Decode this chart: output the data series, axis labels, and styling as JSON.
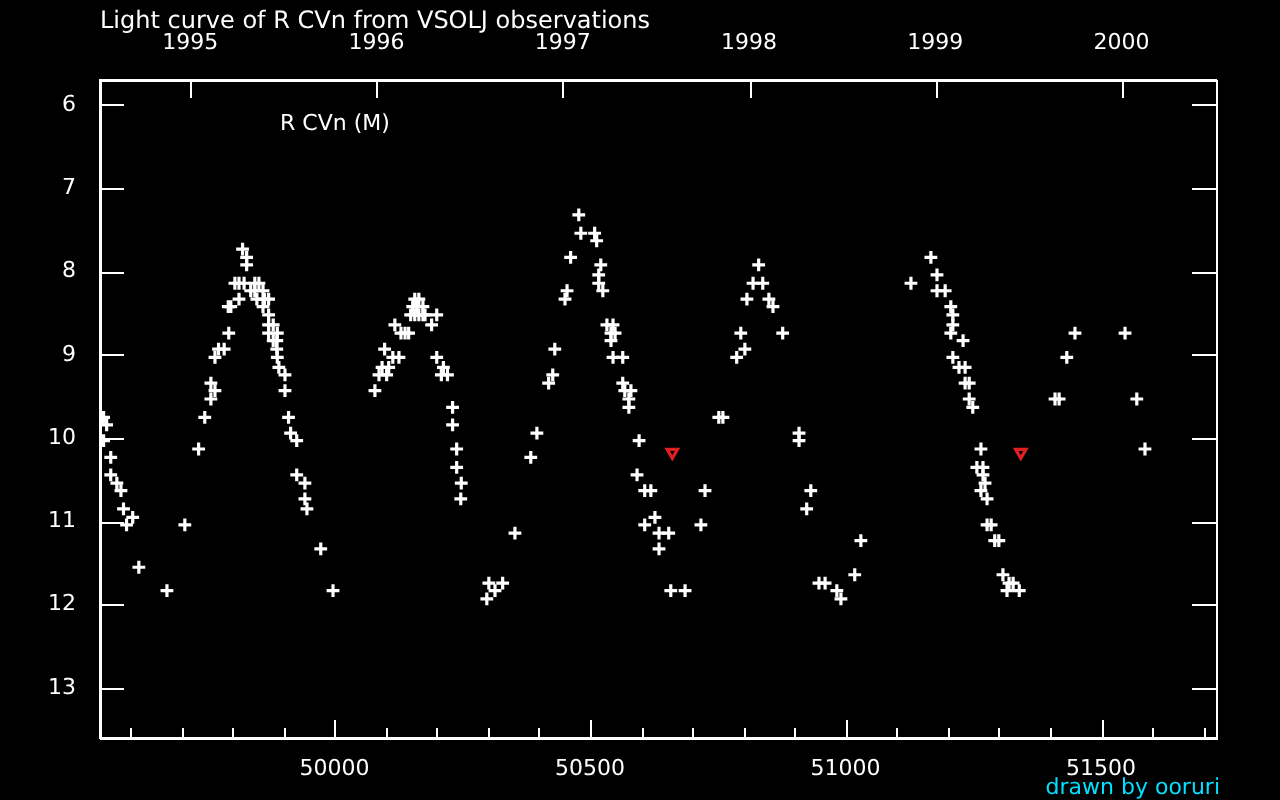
{
  "chart_data": {
    "type": "scatter",
    "title": "Light curve of R CVn from VSOLJ observations",
    "annotations": [
      "drawn by ooruri"
    ],
    "legend": "top left",
    "xlim": [
      49541,
      51725
    ],
    "xticks": [
      {
        "value": 49600,
        "label": null
      },
      {
        "value": 49700,
        "label": null
      },
      {
        "value": 49800,
        "label": null
      },
      {
        "value": 49900,
        "label": null
      },
      50000,
      {
        "value": 50100,
        "label": null
      },
      {
        "value": 50200,
        "label": null
      },
      {
        "value": 50300,
        "label": null
      },
      {
        "value": 50400,
        "label": null
      },
      50500,
      {
        "value": 50600,
        "label": null
      },
      {
        "value": 50700,
        "label": null
      },
      {
        "value": 50800,
        "label": null
      },
      {
        "value": 50900,
        "label": null
      },
      51000,
      {
        "value": 51100,
        "label": null
      },
      {
        "value": 51200,
        "label": null
      },
      {
        "value": 51300,
        "label": null
      },
      {
        "value": 51400,
        "label": null
      },
      51500,
      {
        "value": 51600,
        "label": null
      },
      {
        "value": 51700,
        "label": null
      }
    ],
    "x2lim": [
      1994.515,
      2000.507
    ],
    "x2ticks": [
      1995,
      1996,
      1997,
      1998,
      1999,
      2000
    ],
    "ylim": [
      13.6,
      5.7
    ],
    "yticks": [
      6,
      7,
      8,
      9,
      10,
      11,
      12,
      13
    ],
    "series": [
      {
        "name": "R CVn (M)",
        "color": "#ffffff",
        "marker": "cross",
        "x": [
          49548,
          49554,
          49548,
          49562,
          49562,
          49574,
          49582,
          49587,
          49605,
          49593,
          49617,
          49672,
          49707,
          49734,
          49746,
          49758,
          49766,
          49758,
          49766,
          49773,
          49784,
          49793,
          49792,
          49797,
          49813,
          49805,
          49813,
          49823,
          49820,
          49828,
          49828,
          49844,
          49852,
          49836,
          49844,
          49860,
          49848,
          49863,
          49871,
          49860,
          49871,
          49871,
          49880,
          49871,
          49888,
          49880,
          49887,
          49887,
          49888,
          49891,
          49903,
          49903,
          49910,
          49914,
          49926,
          49926,
          49942,
          49942,
          49946,
          49973,
          49997,
          50079,
          50087,
          50102,
          50093,
          50106,
          50098,
          50114,
          50126,
          50118,
          50130,
          50138,
          50145,
          50149,
          50157,
          50165,
          50173,
          50177,
          50153,
          50161,
          50173,
          50157,
          50165,
          50190,
          50200,
          50200,
          50213,
          50209,
          50221,
          50231,
          50231,
          50239,
          50239,
          50248,
          50247,
          50302,
          50329,
          50314,
          50298,
          50353,
          50384,
          50396,
          50419,
          50427,
          50431,
          50451,
          50455,
          50462,
          50478,
          50482,
          50509,
          50513,
          50521,
          50517,
          50517,
          50525,
          50533,
          50545,
          50541,
          50549,
          50541,
          50545,
          50564,
          50564,
          50568,
          50580,
          50576,
          50576,
          50596,
          50592,
          50607,
          50619,
          50607,
          50627,
          50635,
          50654,
          50635,
          50658,
          50686,
          50717,
          50725,
          50752,
          50760,
          50787,
          50795,
          50803,
          50807,
          50819,
          50838,
          50830,
          50850,
          50858,
          50877,
          50909,
          50909,
          50932,
          50924,
          51030,
          51018,
          50948,
          50960,
          50983,
          50991,
          51128,
          51167,
          51179,
          51179,
          51195,
          51206,
          51210,
          51210,
          51206,
          51230,
          51210,
          51222,
          51234,
          51234,
          51242,
          51242,
          51249,
          51265,
          51257,
          51269,
          51269,
          51273,
          51265,
          51277,
          51277,
          51285,
          51292,
          51300,
          51308,
          51320,
          51328,
          51316,
          51340,
          51410,
          51418,
          51433,
          51449,
          51547,
          51570,
          51586
        ],
        "values": [
          9.75,
          9.84,
          10.03,
          10.23,
          10.44,
          10.54,
          10.63,
          10.85,
          10.95,
          11.04,
          11.55,
          11.83,
          11.04,
          10.13,
          9.75,
          9.53,
          9.43,
          9.34,
          9.03,
          8.93,
          8.93,
          8.74,
          8.42,
          8.42,
          8.33,
          8.14,
          8.14,
          8.14,
          7.73,
          7.83,
          7.92,
          8.14,
          8.14,
          8.23,
          8.23,
          8.23,
          8.33,
          8.33,
          8.33,
          8.42,
          8.52,
          8.64,
          8.64,
          8.74,
          8.74,
          8.83,
          8.83,
          8.93,
          9.03,
          9.15,
          9.24,
          9.43,
          9.75,
          9.94,
          10.03,
          10.44,
          10.54,
          10.73,
          10.85,
          11.33,
          11.83,
          9.43,
          9.24,
          9.24,
          9.15,
          9.15,
          8.93,
          9.03,
          9.03,
          8.64,
          8.74,
          8.74,
          8.74,
          8.52,
          8.52,
          8.52,
          8.52,
          8.52,
          8.42,
          8.42,
          8.42,
          8.33,
          8.33,
          8.64,
          8.52,
          9.03,
          9.15,
          9.24,
          9.24,
          9.63,
          9.84,
          10.13,
          10.35,
          10.54,
          10.73,
          11.74,
          11.74,
          11.83,
          11.93,
          11.14,
          10.23,
          9.94,
          9.34,
          9.24,
          8.93,
          8.33,
          8.23,
          7.83,
          7.32,
          7.54,
          7.54,
          7.63,
          7.92,
          8.04,
          8.14,
          8.23,
          8.64,
          8.64,
          8.74,
          8.74,
          8.83,
          9.03,
          9.03,
          9.34,
          9.43,
          9.43,
          9.53,
          9.63,
          10.03,
          10.44,
          10.63,
          10.63,
          11.04,
          10.95,
          11.14,
          11.14,
          11.33,
          11.83,
          11.83,
          11.04,
          10.63,
          9.75,
          9.75,
          9.03,
          8.74,
          8.93,
          8.33,
          8.14,
          8.14,
          7.92,
          8.33,
          8.42,
          8.74,
          9.94,
          10.03,
          10.63,
          10.85,
          11.23,
          11.64,
          11.74,
          11.74,
          11.83,
          11.93,
          8.14,
          7.83,
          8.04,
          8.23,
          8.23,
          8.42,
          8.52,
          8.64,
          8.74,
          8.83,
          9.03,
          9.15,
          9.15,
          9.34,
          9.34,
          9.53,
          9.63,
          10.13,
          10.35,
          10.35,
          10.44,
          10.54,
          10.63,
          10.73,
          11.04,
          11.04,
          11.23,
          11.23,
          11.64,
          11.74,
          11.74,
          11.83,
          11.83,
          9.53,
          9.53,
          9.03,
          8.74,
          8.74,
          9.53,
          10.13
        ]
      },
      {
        "color": "#e02020",
        "marker": "triangle",
        "x": [
          50661,
          51343
        ],
        "values": [
          10.17,
          10.17
        ]
      }
    ]
  }
}
